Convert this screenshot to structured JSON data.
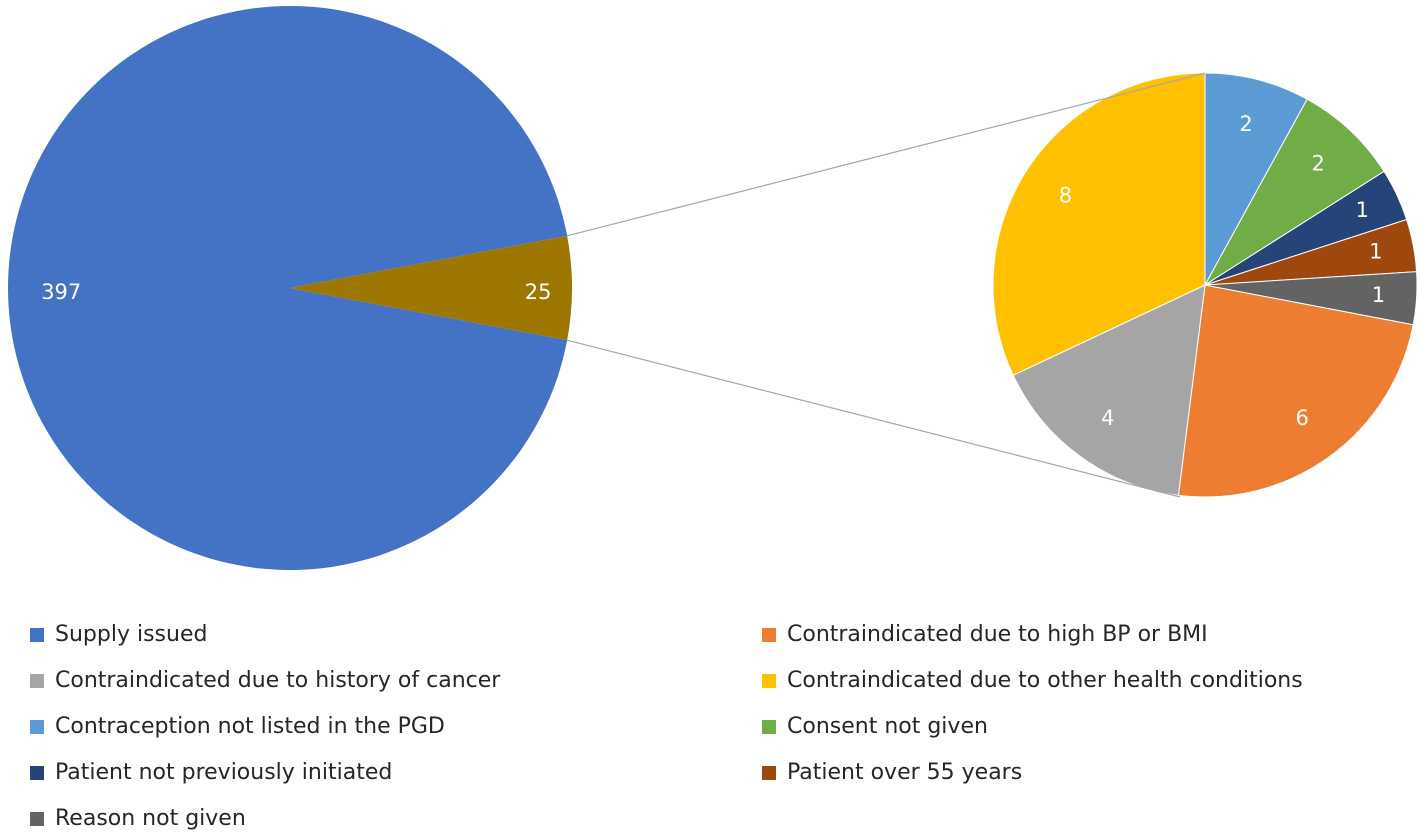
{
  "chart_data": {
    "type": "pie_of_pie",
    "categories": [
      "Supply issued",
      "Contraindicated due to high BP or BMI",
      "Contraindicated due to history of cancer",
      "Contraindicated due to other health conditions",
      "Contraception not listed in the PGD",
      "Consent not given",
      "Patient not previously initiated",
      "Patient over 55 years",
      "Reason not given"
    ],
    "values": [
      397,
      6,
      4,
      8,
      2,
      2,
      1,
      1,
      1
    ],
    "colors": [
      "#4472c4",
      "#ed7d31",
      "#a5a5a5",
      "#ffc000",
      "#5b9bd5",
      "#70ad47",
      "#264478",
      "#9e480e",
      "#636363"
    ],
    "other_value": 25,
    "other_color": "#9e7700",
    "legend": "bottom"
  }
}
